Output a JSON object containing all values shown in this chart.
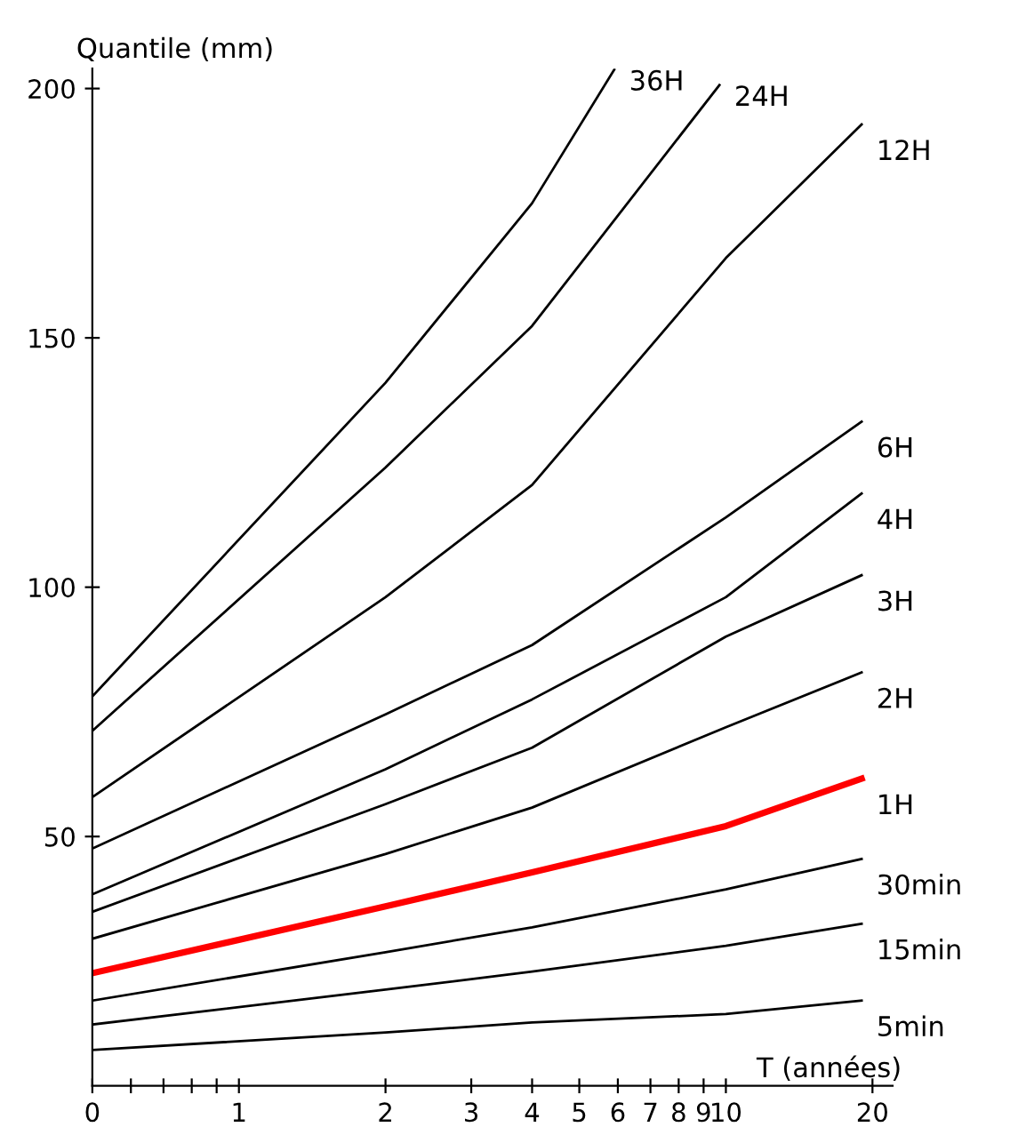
{
  "chart_data": {
    "type": "line",
    "xlabel": "T (années)",
    "ylabel": "Quantile (mm)",
    "log": "x",
    "xlim": [
      0.5,
      22
    ],
    "ylim": [
      0,
      204
    ],
    "xticks": [
      {
        "value": 0.5,
        "label": "0"
      },
      {
        "value": 0.6,
        "label": null
      },
      {
        "value": 0.7,
        "label": null
      },
      {
        "value": 0.8,
        "label": null
      },
      {
        "value": 0.9,
        "label": null
      },
      1,
      2,
      3,
      4,
      5,
      6,
      7,
      8,
      9,
      10,
      20
    ],
    "yticks": [
      50,
      100,
      150,
      200
    ],
    "grid": false,
    "legend": false,
    "marker": "none",
    "line_style": "solid",
    "series": [
      {
        "name": "36H",
        "color": "#000000",
        "x": [
          0.5,
          2,
          4,
          5.9
        ],
        "values": [
          78.1,
          141,
          177,
          203.8
        ]
      },
      {
        "name": "24H",
        "color": "#000000",
        "x": [
          0.5,
          2,
          4,
          9.7
        ],
        "values": [
          71.2,
          124,
          152.4,
          200.7
        ]
      },
      {
        "name": "12H",
        "color": "#000000",
        "x": [
          0.5,
          2,
          4,
          10,
          19
        ],
        "values": [
          57.9,
          98,
          120.5,
          166,
          192.8
        ]
      },
      {
        "name": "6H",
        "color": "#000000",
        "x": [
          0.5,
          2,
          4,
          10,
          19
        ],
        "values": [
          47.6,
          74.5,
          88.4,
          114,
          133.2
        ]
      },
      {
        "name": "4H",
        "color": "#000000",
        "x": [
          0.5,
          2,
          4,
          10,
          19
        ],
        "values": [
          38.4,
          63.5,
          77.5,
          98,
          118.8
        ]
      },
      {
        "name": "3H",
        "color": "#000000",
        "x": [
          0.5,
          2,
          4,
          10,
          19
        ],
        "values": [
          34.9,
          56.5,
          67.8,
          90.1,
          102.4
        ]
      },
      {
        "name": "2H",
        "color": "#000000",
        "x": [
          0.5,
          2,
          4,
          10,
          19
        ],
        "values": [
          29.5,
          46.5,
          55.8,
          71.9,
          82.9
        ]
      },
      {
        "name": "1H",
        "color": "#ff0000",
        "x": [
          0.5,
          2,
          4,
          10,
          19
        ],
        "values": [
          22.6,
          36,
          42.8,
          52.1,
          61.6
        ]
      },
      {
        "name": "30min",
        "color": "#000000",
        "x": [
          0.5,
          2,
          4,
          10,
          19
        ],
        "values": [
          17.1,
          26.8,
          31.8,
          39.4,
          45.5
        ]
      },
      {
        "name": "15min",
        "color": "#000000",
        "x": [
          0.5,
          2,
          4,
          10,
          19
        ],
        "values": [
          12.3,
          19.3,
          22.9,
          28.1,
          32.5
        ]
      },
      {
        "name": "5min",
        "color": "#000000",
        "x": [
          0.5,
          2,
          4,
          10,
          19
        ],
        "values": [
          7.2,
          10.7,
          12.7,
          14.4,
          17.1
        ]
      }
    ]
  }
}
